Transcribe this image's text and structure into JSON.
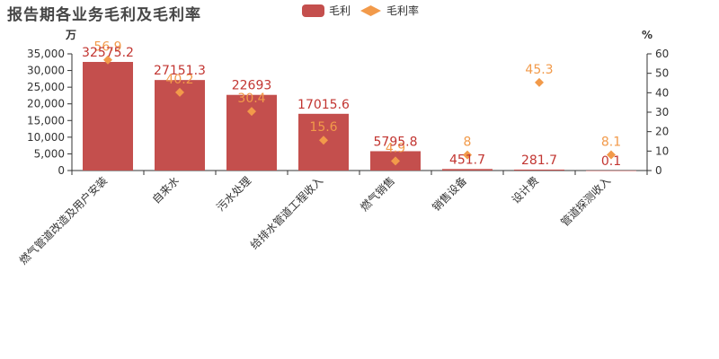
{
  "title": "报告期各业务毛利及毛利率",
  "legend": {
    "items": [
      {
        "name": "毛利",
        "icon": "bar-swatch",
        "color": "#c23531"
      },
      {
        "name": "毛利率",
        "icon": "diamond-swatch",
        "color": "#ee8a3a"
      }
    ]
  },
  "colors": {
    "bar": "#c44f4d",
    "bar_label": "#c23531",
    "rate": "#f29a4a",
    "axis": "#333333"
  },
  "chart_data": {
    "type": "bar",
    "title": "报告期各业务毛利及毛利率",
    "categories": [
      "燃气管道改造及用户安装",
      "自来水",
      "污水处理",
      "给排水管道工程收入",
      "燃气销售",
      "销售设备",
      "设计费",
      "管道探测收入"
    ],
    "series": [
      {
        "name": "毛利",
        "type": "bar",
        "axis": "left",
        "values": [
          32575.2,
          27151.3,
          22693,
          17015.6,
          5795.8,
          451.7,
          281.7,
          0.1
        ],
        "labels": [
          "32575.2",
          "27151.3",
          "22693",
          "17015.6",
          "5795.8",
          "451.7",
          "281.7",
          "0.1"
        ]
      },
      {
        "name": "毛利率",
        "type": "scatter",
        "axis": "right",
        "values": [
          56.9,
          40.2,
          30.4,
          15.6,
          4.9,
          8,
          45.3,
          8.1
        ],
        "labels": [
          "56.9",
          "40.2",
          "30.4",
          "15.6",
          "4.9",
          "8",
          "45.3",
          "8.1"
        ]
      }
    ],
    "ylabel": "万",
    "y2label": "%",
    "ylim": [
      0,
      35000
    ],
    "yticks": [
      "0",
      "5,000",
      "10,000",
      "15,000",
      "20,000",
      "25,000",
      "30,000",
      "35,000"
    ],
    "y2lim": [
      0,
      60
    ],
    "y2ticks": [
      "0",
      "10",
      "20",
      "30",
      "40",
      "50",
      "60"
    ],
    "grid": false,
    "legend_position": "top-center"
  }
}
